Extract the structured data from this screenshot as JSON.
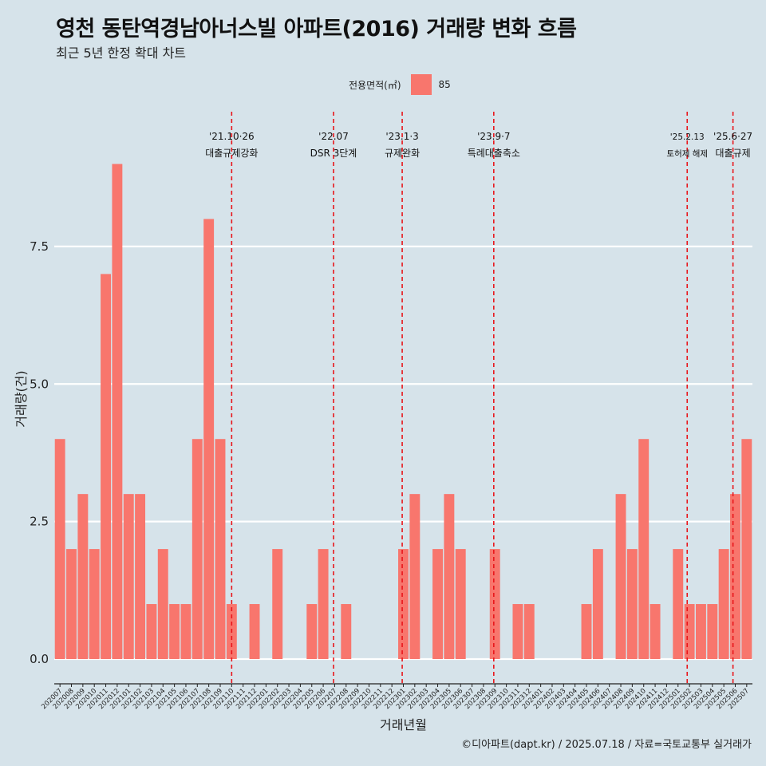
{
  "title": "영천 동탄역경남아너스빌 아파트(2016) 거래량 변화 흐름",
  "subtitle": "최근 5년 한정 확대 차트",
  "legend": {
    "title": "전용면적(㎡)",
    "item": "85",
    "color": "#f8766d"
  },
  "caption": "©디아파트(dapt.kr) / 2025.07.18 / 자료=국토교통부 실거래가",
  "chart_data": {
    "type": "bar",
    "xlabel": "거래년월",
    "ylabel": "거래량(건)",
    "ylim": [
      -0.45,
      9.95
    ],
    "yticks": [
      0,
      2.5,
      5,
      7.5
    ],
    "ytick_labels": [
      "0.0",
      "2.5",
      "5.0",
      "7.5"
    ],
    "grid": "horizontal",
    "legend_position": "top",
    "bar_color": "#f8766d",
    "background": "#d6e3ea",
    "categories": [
      "202007",
      "202008",
      "202009",
      "202010",
      "202011",
      "202012",
      "202101",
      "202102",
      "202103",
      "202104",
      "202105",
      "202106",
      "202107",
      "202108",
      "202109",
      "202110",
      "202111",
      "202112",
      "202201",
      "202202",
      "202203",
      "202204",
      "202205",
      "202206",
      "202207",
      "202208",
      "202209",
      "202210",
      "202211",
      "202212",
      "202301",
      "202302",
      "202303",
      "202304",
      "202305",
      "202306",
      "202307",
      "202308",
      "202309",
      "202310",
      "202311",
      "202312",
      "202401",
      "202402",
      "202403",
      "202404",
      "202405",
      "202406",
      "202407",
      "202408",
      "202409",
      "202410",
      "202411",
      "202412",
      "202501",
      "202502",
      "202503",
      "202504",
      "202505",
      "202506",
      "202507"
    ],
    "series": [
      {
        "values": [
          4,
          2,
          3,
          2,
          7,
          9,
          3,
          3,
          1,
          2,
          1,
          1,
          4,
          8,
          4,
          1,
          0,
          1,
          0,
          2,
          0,
          0,
          1,
          2,
          0,
          1,
          0,
          0,
          0,
          0,
          2,
          3,
          0,
          2,
          3,
          2,
          0,
          0,
          2,
          0,
          1,
          1,
          0,
          0,
          0,
          0,
          1,
          2,
          0,
          3,
          2,
          4,
          1,
          0,
          2,
          1,
          1,
          1,
          2,
          3,
          4
        ]
      }
    ],
    "annotations": [
      {
        "at": 15.0,
        "date": "'21.10·26",
        "text": "대출규제강화",
        "small": false
      },
      {
        "at": 23.9,
        "date": "'22.07",
        "text": "DSR 3단계",
        "small": false
      },
      {
        "at": 29.9,
        "date": "'23.1·3",
        "text": "규제완화",
        "small": false
      },
      {
        "at": 37.9,
        "date": "'23.9·7",
        "text": "특례대출축소",
        "small": false
      },
      {
        "at": 54.8,
        "date": "'25.2.13",
        "text": "토허제 해제",
        "small": true
      },
      {
        "at": 58.8,
        "date": "'25.6·27",
        "text": "대출규제",
        "small": false
      }
    ]
  }
}
